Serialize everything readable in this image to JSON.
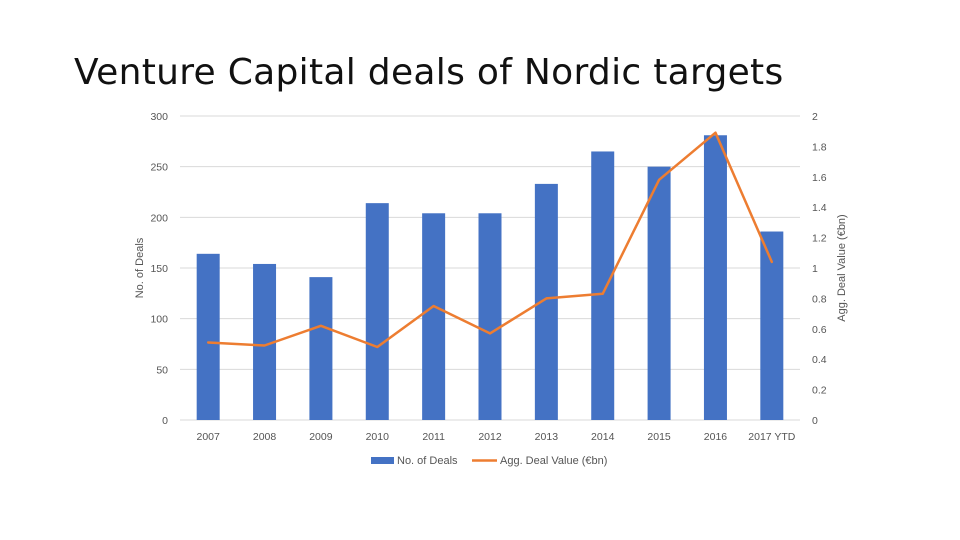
{
  "slide": {
    "title": "Venture Capital deals of Nordic targets"
  },
  "colors": {
    "bar": "#4472c4",
    "line": "#ed7d31",
    "grid": "#d9d9d9",
    "text": "#555555"
  },
  "chart_data": {
    "type": "bar",
    "title": "",
    "categories": [
      "2007",
      "2008",
      "2009",
      "2010",
      "2011",
      "2012",
      "2013",
      "2014",
      "2015",
      "2016",
      "2017 YTD"
    ],
    "ylabel": "No. of Deals",
    "y2label": "Agg. Deal Value (€bn)",
    "ylim": [
      0,
      300
    ],
    "y2lim": [
      0,
      2
    ],
    "yticks": [
      "0",
      "50",
      "100",
      "150",
      "200",
      "250",
      "300"
    ],
    "y2ticks": [
      "0",
      "0.2",
      "0.4",
      "0.6",
      "0.8",
      "1",
      "1.2",
      "1.4",
      "1.6",
      "1.8",
      "2"
    ],
    "grid": true,
    "legend_position": "bottom",
    "series": [
      {
        "name": "No. of Deals",
        "type": "bar",
        "axis": "left",
        "values": [
          164,
          154,
          141,
          214,
          204,
          204,
          233,
          265,
          250,
          281,
          186
        ]
      },
      {
        "name": "Agg. Deal Value (€bn)",
        "type": "line",
        "axis": "right",
        "values": [
          0.51,
          0.49,
          0.62,
          0.48,
          0.75,
          0.57,
          0.8,
          0.83,
          1.58,
          1.89,
          1.04
        ]
      }
    ]
  }
}
